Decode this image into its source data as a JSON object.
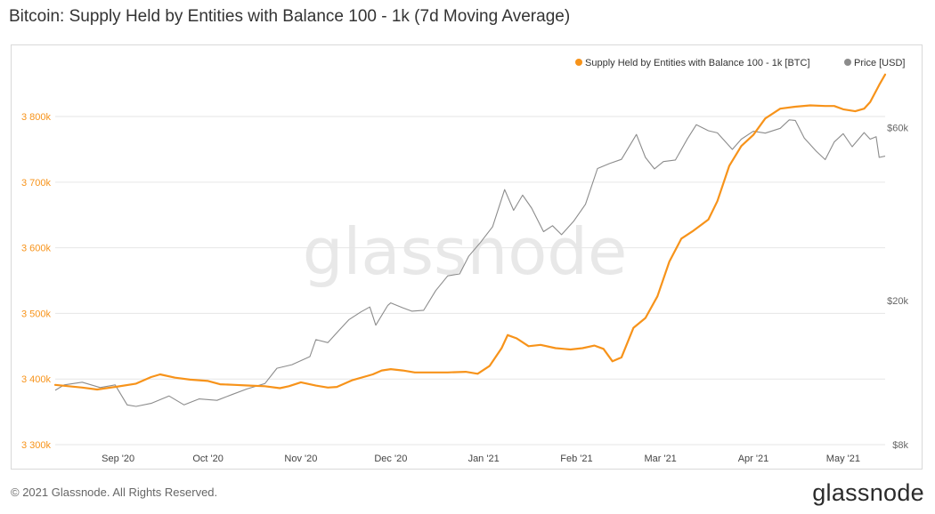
{
  "page": {
    "title": "Bitcoin: Supply Held by Entities with Balance 100 - 1k (7d Moving Average)",
    "footer": "© 2021 Glassnode. All Rights Reserved.",
    "watermark": "glassnode",
    "brand": "glassnode"
  },
  "colors": {
    "supply": "#f7931a",
    "price": "#8c8c8c",
    "grid": "#e6e6e6",
    "watermark": "#e8e8e8"
  },
  "chart_data": {
    "type": "line",
    "title": "Bitcoin: Supply Held by Entities with Balance 100 - 1k (7d Moving Average)",
    "x_ticks": [
      "Sep '20",
      "Oct '20",
      "Nov '20",
      "Dec '20",
      "Jan '21",
      "Feb '21",
      "Mar '21",
      "Apr '21",
      "May '21"
    ],
    "x_range": [
      "2020-08-11",
      "2021-05-15"
    ],
    "left_axis": {
      "unit": "BTC",
      "ticks": [
        "3 300k",
        "3 400k",
        "3 500k",
        "3 600k",
        "3 700k",
        "3 800k"
      ],
      "range": [
        3300000,
        3880000
      ]
    },
    "right_axis": {
      "unit": "USD",
      "scale": "log",
      "ticks": [
        "$8k",
        "$20k",
        "$60k"
      ],
      "range": [
        8000,
        90000
      ]
    },
    "legend": {
      "placement": "top-right",
      "entries": [
        "Supply Held by Entities with Balance 100 - 1k [BTC]",
        "Price [USD]"
      ]
    },
    "series": [
      {
        "name": "Supply Held by Entities with Balance 100 - 1k [BTC]",
        "axis": "left",
        "points": [
          [
            "2020-08-11",
            3391000
          ],
          [
            "2020-08-20",
            3387000
          ],
          [
            "2020-08-25",
            3384000
          ],
          [
            "2020-08-31",
            3388000
          ],
          [
            "2020-09-07",
            3393000
          ],
          [
            "2020-09-12",
            3403000
          ],
          [
            "2020-09-15",
            3407000
          ],
          [
            "2020-09-20",
            3402000
          ],
          [
            "2020-09-25",
            3399000
          ],
          [
            "2020-10-01",
            3397000
          ],
          [
            "2020-10-05",
            3392000
          ],
          [
            "2020-10-10",
            3391000
          ],
          [
            "2020-10-15",
            3390000
          ],
          [
            "2020-10-20",
            3389000
          ],
          [
            "2020-10-25",
            3386000
          ],
          [
            "2020-10-28",
            3389000
          ],
          [
            "2020-11-01",
            3395000
          ],
          [
            "2020-11-06",
            3390000
          ],
          [
            "2020-11-10",
            3387000
          ],
          [
            "2020-11-13",
            3388000
          ],
          [
            "2020-11-18",
            3398000
          ],
          [
            "2020-11-25",
            3407000
          ],
          [
            "2020-11-28",
            3413000
          ],
          [
            "2020-12-01",
            3415000
          ],
          [
            "2020-12-05",
            3413000
          ],
          [
            "2020-12-09",
            3410000
          ],
          [
            "2020-12-15",
            3410000
          ],
          [
            "2020-12-20",
            3410000
          ],
          [
            "2020-12-26",
            3411000
          ],
          [
            "2020-12-30",
            3408000
          ],
          [
            "2021-01-03",
            3420000
          ],
          [
            "2021-01-07",
            3447000
          ],
          [
            "2021-01-09",
            3467000
          ],
          [
            "2021-01-12",
            3462000
          ],
          [
            "2021-01-16",
            3450000
          ],
          [
            "2021-01-20",
            3452000
          ],
          [
            "2021-01-25",
            3447000
          ],
          [
            "2021-01-30",
            3445000
          ],
          [
            "2021-02-03",
            3447000
          ],
          [
            "2021-02-07",
            3451000
          ],
          [
            "2021-02-10",
            3446000
          ],
          [
            "2021-02-13",
            3427000
          ],
          [
            "2021-02-16",
            3433000
          ],
          [
            "2021-02-20",
            3478000
          ],
          [
            "2021-02-24",
            3493000
          ],
          [
            "2021-02-28",
            3526000
          ],
          [
            "2021-03-04",
            3579000
          ],
          [
            "2021-03-08",
            3614000
          ],
          [
            "2021-03-12",
            3626000
          ],
          [
            "2021-03-17",
            3643000
          ],
          [
            "2021-03-20",
            3671000
          ],
          [
            "2021-03-24",
            3725000
          ],
          [
            "2021-03-28",
            3755000
          ],
          [
            "2021-04-01",
            3772000
          ],
          [
            "2021-04-05",
            3797000
          ],
          [
            "2021-04-10",
            3812000
          ],
          [
            "2021-04-15",
            3815000
          ],
          [
            "2021-04-20",
            3817000
          ],
          [
            "2021-04-25",
            3816000
          ],
          [
            "2021-04-28",
            3816000
          ],
          [
            "2021-05-01",
            3811000
          ],
          [
            "2021-05-05",
            3808000
          ],
          [
            "2021-05-08",
            3812000
          ],
          [
            "2021-05-10",
            3822000
          ],
          [
            "2021-05-13",
            3848000
          ],
          [
            "2021-05-15",
            3864000
          ]
        ]
      },
      {
        "name": "Price [USD]",
        "axis": "right",
        "points": [
          [
            "2020-08-11",
            11300
          ],
          [
            "2020-08-14",
            11700
          ],
          [
            "2020-08-20",
            11900
          ],
          [
            "2020-08-26",
            11500
          ],
          [
            "2020-08-31",
            11700
          ],
          [
            "2020-09-04",
            10300
          ],
          [
            "2020-09-07",
            10200
          ],
          [
            "2020-09-12",
            10400
          ],
          [
            "2020-09-18",
            10900
          ],
          [
            "2020-09-23",
            10300
          ],
          [
            "2020-09-28",
            10700
          ],
          [
            "2020-10-04",
            10600
          ],
          [
            "2020-10-09",
            11000
          ],
          [
            "2020-10-14",
            11400
          ],
          [
            "2020-10-20",
            11800
          ],
          [
            "2020-10-24",
            13000
          ],
          [
            "2020-10-29",
            13300
          ],
          [
            "2020-11-04",
            14000
          ],
          [
            "2020-11-06",
            15600
          ],
          [
            "2020-11-10",
            15300
          ],
          [
            "2020-11-13",
            16300
          ],
          [
            "2020-11-17",
            17700
          ],
          [
            "2020-11-21",
            18600
          ],
          [
            "2020-11-24",
            19200
          ],
          [
            "2020-11-26",
            17100
          ],
          [
            "2020-11-30",
            19400
          ],
          [
            "2020-12-01",
            19700
          ],
          [
            "2020-12-05",
            19100
          ],
          [
            "2020-12-08",
            18700
          ],
          [
            "2020-12-12",
            18800
          ],
          [
            "2020-12-16",
            21300
          ],
          [
            "2020-12-20",
            23400
          ],
          [
            "2020-12-24",
            23700
          ],
          [
            "2020-12-27",
            26500
          ],
          [
            "2020-12-31",
            29000
          ],
          [
            "2021-01-04",
            32000
          ],
          [
            "2021-01-08",
            40500
          ],
          [
            "2021-01-11",
            35500
          ],
          [
            "2021-01-14",
            39100
          ],
          [
            "2021-01-17",
            36000
          ],
          [
            "2021-01-21",
            31000
          ],
          [
            "2021-01-24",
            32200
          ],
          [
            "2021-01-27",
            30400
          ],
          [
            "2021-01-31",
            33100
          ],
          [
            "2021-02-04",
            36900
          ],
          [
            "2021-02-08",
            46300
          ],
          [
            "2021-02-12",
            47800
          ],
          [
            "2021-02-16",
            49100
          ],
          [
            "2021-02-21",
            57500
          ],
          [
            "2021-02-24",
            49700
          ],
          [
            "2021-02-27",
            46200
          ],
          [
            "2021-03-02",
            48400
          ],
          [
            "2021-03-06",
            48900
          ],
          [
            "2021-03-10",
            55900
          ],
          [
            "2021-03-13",
            61200
          ],
          [
            "2021-03-17",
            58900
          ],
          [
            "2021-03-20",
            58100
          ],
          [
            "2021-03-25",
            52300
          ],
          [
            "2021-03-28",
            55800
          ],
          [
            "2021-04-01",
            58700
          ],
          [
            "2021-04-05",
            58000
          ],
          [
            "2021-04-10",
            59800
          ],
          [
            "2021-04-13",
            63100
          ],
          [
            "2021-04-15",
            62900
          ],
          [
            "2021-04-18",
            56200
          ],
          [
            "2021-04-22",
            51700
          ],
          [
            "2021-04-25",
            49000
          ],
          [
            "2021-04-28",
            54800
          ],
          [
            "2021-05-01",
            57800
          ],
          [
            "2021-05-04",
            53200
          ],
          [
            "2021-05-08",
            58200
          ],
          [
            "2021-05-10",
            55800
          ],
          [
            "2021-05-12",
            56700
          ],
          [
            "2021-05-13",
            49700
          ],
          [
            "2021-05-15",
            50100
          ]
        ]
      }
    ]
  }
}
